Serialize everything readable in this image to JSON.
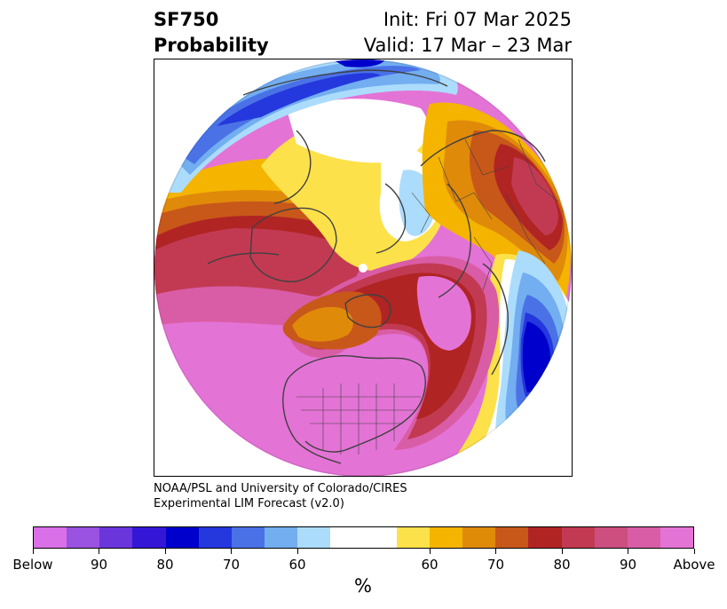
{
  "header": {
    "variable": "SF750",
    "product": "Probability",
    "init": "Init: Fri 07 Mar 2025",
    "valid": "Valid: 17 Mar – 23 Mar"
  },
  "credit": {
    "line1": "NOAA/PSL and University of Colorado/CIRES",
    "line2": "Experimental LIM Forecast (v2.0)"
  },
  "colorbar": {
    "colors": [
      "#da70e8",
      "#9a52e0",
      "#6b35dc",
      "#3417d6",
      "#0000cc",
      "#2438dd",
      "#4a72e6",
      "#72aef0",
      "#acdcfc",
      "#ffffff",
      "#ffffff",
      "#fde14a",
      "#f4b400",
      "#e08a0a",
      "#c8571a",
      "#b12424",
      "#c23a52",
      "#cc4f80",
      "#d95da6",
      "#e473d6"
    ],
    "labels": [
      "Below",
      "90",
      "80",
      "70",
      "60",
      "60",
      "70",
      "80",
      "90",
      "Above"
    ],
    "unit": "%"
  }
}
